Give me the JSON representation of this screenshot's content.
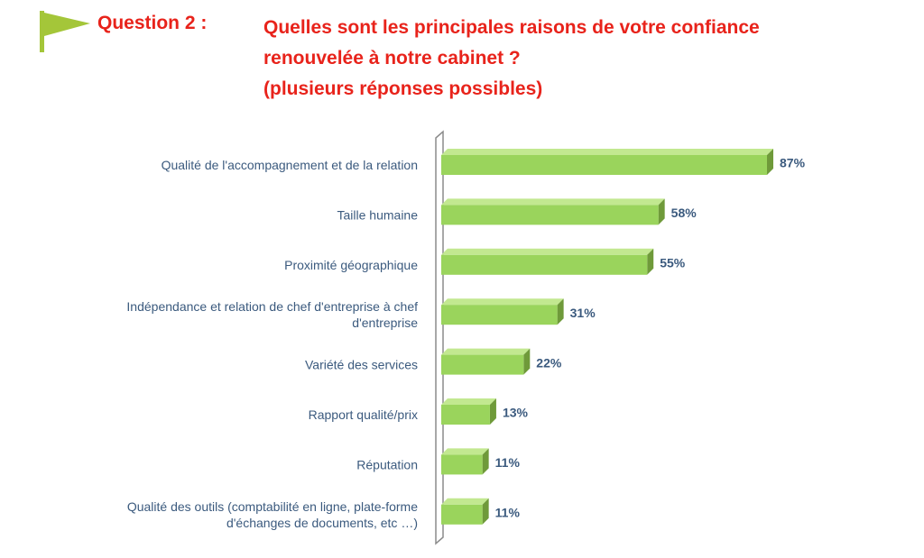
{
  "header": {
    "question_label": "Question 2 :",
    "question_lines": [
      "Quelles sont les principales raisons de votre confiance",
      "renouvelée à notre cabinet ?",
      "(plusieurs réponses possibles)"
    ],
    "flag_color": "#a4c639"
  },
  "chart_data": {
    "type": "bar",
    "orientation": "horizontal",
    "style": "3d",
    "categories": [
      "Qualité de l'accompagnement  et de la relation",
      "Taille humaine",
      "Proximité géographique",
      "Indépendance et relation de chef d'entreprise à chef d'entreprise",
      "Variété des services",
      "Rapport qualité/prix",
      "Réputation",
      "Qualité des outils (comptabilité en ligne, plate-forme d'échanges de documents, etc …)"
    ],
    "category_lines": [
      [
        "Qualité de l'accompagnement  et de la relation"
      ],
      [
        "Taille humaine"
      ],
      [
        "Proximité géographique"
      ],
      [
        "Indépendance et relation de chef d'entreprise à chef",
        "d'entreprise"
      ],
      [
        "Variété des services"
      ],
      [
        "Rapport qualité/prix"
      ],
      [
        "Réputation"
      ],
      [
        "Qualité des outils (comptabilité en ligne, plate-forme",
        "d'échanges de documents, etc …)"
      ]
    ],
    "values": [
      87,
      58,
      55,
      31,
      22,
      13,
      11,
      11
    ],
    "value_labels": [
      "87%",
      "58%",
      "55%",
      "31%",
      "22%",
      "13%",
      "11%",
      "11%"
    ],
    "xlim": [
      0,
      100
    ],
    "grid": false,
    "legend": "none",
    "colors": {
      "bar_front": "#9ad45c",
      "bar_top": "#c2e890",
      "bar_side": "#6f9a3a",
      "label": "#3b5a7e",
      "axis": "#8c8c8c"
    }
  }
}
